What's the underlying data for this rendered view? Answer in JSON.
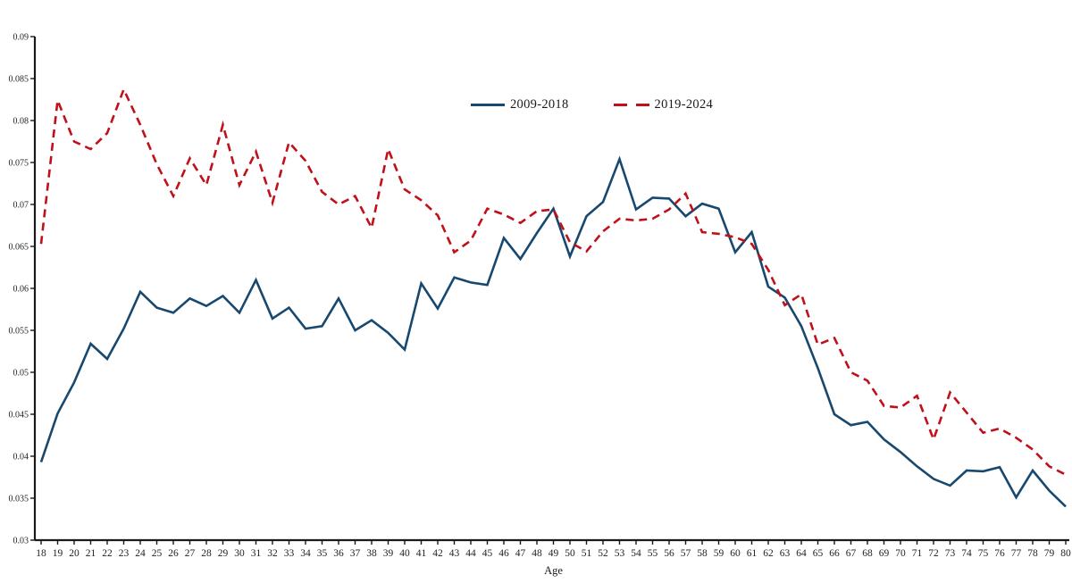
{
  "chart_data": {
    "type": "line",
    "title": "",
    "xlabel": "Age",
    "ylabel": "",
    "ylim": [
      0.03,
      0.09
    ],
    "ytick_step": 0.005,
    "y_tick_labels": [
      "0.03",
      "0.035",
      "0.04",
      "0.045",
      "0.05",
      "0.055",
      "0.06",
      "0.065",
      "0.07",
      "0.075",
      "0.08",
      "0.085",
      "0.09"
    ],
    "grid": false,
    "legend_position": "top-center",
    "axis_color": "#1a1a1a",
    "background_color": "#ffffff",
    "x": [
      18,
      19,
      20,
      21,
      22,
      23,
      24,
      25,
      26,
      27,
      28,
      29,
      30,
      31,
      32,
      33,
      34,
      35,
      36,
      37,
      38,
      39,
      40,
      41,
      42,
      43,
      44,
      45,
      46,
      47,
      48,
      49,
      50,
      51,
      52,
      53,
      54,
      55,
      56,
      57,
      58,
      59,
      60,
      61,
      62,
      63,
      64,
      65,
      66,
      67,
      68,
      69,
      70,
      71,
      72,
      73,
      74,
      75,
      76,
      77,
      78,
      79,
      80
    ],
    "series": [
      {
        "name": "2009-2018",
        "style": "solid",
        "color": "#17486f",
        "values": [
          0.0393,
          0.0451,
          0.0488,
          0.0534,
          0.0516,
          0.0552,
          0.0596,
          0.0577,
          0.0571,
          0.0588,
          0.0579,
          0.0591,
          0.0571,
          0.061,
          0.0564,
          0.0577,
          0.0552,
          0.0555,
          0.0588,
          0.055,
          0.0562,
          0.0547,
          0.0527,
          0.0606,
          0.0576,
          0.0613,
          0.0607,
          0.0604,
          0.066,
          0.0635,
          0.0666,
          0.0695,
          0.0638,
          0.0686,
          0.0703,
          0.0754,
          0.0694,
          0.0708,
          0.0707,
          0.0686,
          0.0701,
          0.0695,
          0.0643,
          0.0667,
          0.0602,
          0.0589,
          0.0555,
          0.0505,
          0.045,
          0.0437,
          0.0441,
          0.042,
          0.0405,
          0.0388,
          0.0373,
          0.0365,
          0.0383,
          0.0382,
          0.0387,
          0.0351,
          0.0383,
          0.0359,
          0.034
        ]
      },
      {
        "name": "2019-2024",
        "style": "dashed",
        "color": "#c01019",
        "values": [
          0.0653,
          0.0824,
          0.0775,
          0.0766,
          0.0785,
          0.0837,
          0.0795,
          0.0748,
          0.071,
          0.0755,
          0.0723,
          0.0795,
          0.0723,
          0.0763,
          0.0702,
          0.0774,
          0.0752,
          0.0715,
          0.07,
          0.071,
          0.0672,
          0.0766,
          0.0718,
          0.0705,
          0.0687,
          0.0643,
          0.0657,
          0.0695,
          0.0688,
          0.0678,
          0.0692,
          0.0694,
          0.0655,
          0.0644,
          0.0668,
          0.0683,
          0.0681,
          0.0683,
          0.0694,
          0.0713,
          0.0667,
          0.0665,
          0.0661,
          0.0653,
          0.0622,
          0.058,
          0.0593,
          0.0533,
          0.0541,
          0.05,
          0.049,
          0.046,
          0.0458,
          0.0472,
          0.042,
          0.0476,
          0.0452,
          0.0428,
          0.0433,
          0.0422,
          0.0408,
          0.0388,
          0.0378
        ]
      }
    ]
  }
}
